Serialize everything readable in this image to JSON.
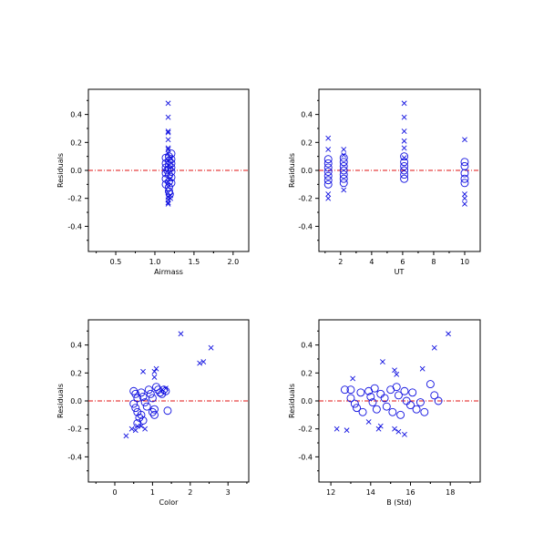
{
  "chart_data": [
    {
      "type": "scatter",
      "xlabel": "Airmass",
      "ylabel": "Residuals",
      "xlim": [
        0.15,
        2.2
      ],
      "ylim": [
        -0.58,
        0.58
      ],
      "xticks": [
        "0.5",
        "1.0",
        "1.5",
        "2.0"
      ],
      "yticks": [
        "-0.4",
        "-0.2",
        "0.0",
        "0.2",
        "0.4"
      ],
      "reference_line": 0,
      "series": [
        {
          "marker": "x",
          "points": [
            [
              1.17,
              0.48
            ],
            [
              1.17,
              0.38
            ],
            [
              1.17,
              0.28
            ],
            [
              1.17,
              0.27
            ],
            [
              1.17,
              0.22
            ],
            [
              1.17,
              0.16
            ],
            [
              1.17,
              0.15
            ],
            [
              1.17,
              0.12
            ],
            [
              1.17,
              -0.08
            ],
            [
              1.17,
              -0.12
            ],
            [
              1.17,
              -0.16
            ],
            [
              1.17,
              -0.19
            ],
            [
              1.17,
              -0.21
            ],
            [
              1.17,
              -0.23
            ],
            [
              1.17,
              -0.24
            ],
            [
              1.2,
              -0.18
            ],
            [
              1.2,
              -0.2
            ],
            [
              1.2,
              0.09
            ],
            [
              1.2,
              -0.06
            ]
          ]
        },
        {
          "marker": "o",
          "points": [
            [
              1.14,
              0.09
            ],
            [
              1.14,
              0.05
            ],
            [
              1.14,
              0.02
            ],
            [
              1.14,
              -0.02
            ],
            [
              1.14,
              -0.06
            ],
            [
              1.14,
              -0.1
            ],
            [
              1.18,
              0.1
            ],
            [
              1.18,
              0.07
            ],
            [
              1.18,
              0.04
            ],
            [
              1.18,
              0.01
            ],
            [
              1.18,
              -0.03
            ],
            [
              1.18,
              -0.08
            ],
            [
              1.18,
              -0.12
            ],
            [
              1.18,
              -0.15
            ],
            [
              1.21,
              0.08
            ],
            [
              1.21,
              0.05
            ],
            [
              1.21,
              0.02
            ],
            [
              1.21,
              -0.01
            ],
            [
              1.21,
              -0.05
            ],
            [
              1.21,
              -0.09
            ],
            [
              1.21,
              0.12
            ],
            [
              1.16,
              0.0
            ],
            [
              1.19,
              -0.17
            ]
          ]
        }
      ]
    },
    {
      "type": "scatter",
      "xlabel": "UT",
      "ylabel": "Residuals",
      "xlim": [
        0.6,
        11.0
      ],
      "ylim": [
        -0.58,
        0.58
      ],
      "xticks": [
        "2",
        "4",
        "6",
        "8",
        "10"
      ],
      "yticks": [
        "-0.4",
        "-0.2",
        "0.0",
        "0.2",
        "0.4"
      ],
      "reference_line": 0,
      "series": [
        {
          "marker": "x",
          "points": [
            [
              1.2,
              0.23
            ],
            [
              1.2,
              0.15
            ],
            [
              1.2,
              -0.17
            ],
            [
              1.2,
              -0.2
            ],
            [
              2.2,
              0.15
            ],
            [
              2.2,
              0.11
            ],
            [
              2.2,
              -0.14
            ],
            [
              6.1,
              0.48
            ],
            [
              6.1,
              0.38
            ],
            [
              6.1,
              0.28
            ],
            [
              6.1,
              0.21
            ],
            [
              6.1,
              0.16
            ],
            [
              6.1,
              0.09
            ],
            [
              10.0,
              0.22
            ],
            [
              10.0,
              -0.17
            ],
            [
              10.0,
              -0.2
            ],
            [
              10.0,
              -0.24
            ]
          ]
        },
        {
          "marker": "o",
          "points": [
            [
              1.2,
              0.08
            ],
            [
              1.2,
              0.05
            ],
            [
              1.2,
              0.02
            ],
            [
              1.2,
              -0.01
            ],
            [
              1.2,
              -0.04
            ],
            [
              1.2,
              -0.07
            ],
            [
              1.2,
              -0.1
            ],
            [
              2.2,
              0.09
            ],
            [
              2.2,
              0.06
            ],
            [
              2.2,
              0.03
            ],
            [
              2.2,
              0.0
            ],
            [
              2.2,
              -0.03
            ],
            [
              2.2,
              -0.06
            ],
            [
              2.2,
              -0.09
            ],
            [
              6.1,
              0.1
            ],
            [
              6.1,
              0.06
            ],
            [
              6.1,
              0.03
            ],
            [
              6.1,
              0.0
            ],
            [
              6.1,
              -0.03
            ],
            [
              6.1,
              -0.06
            ],
            [
              10.0,
              0.06
            ],
            [
              10.0,
              0.03
            ],
            [
              10.0,
              -0.02
            ],
            [
              10.0,
              -0.06
            ],
            [
              10.0,
              -0.09
            ]
          ]
        }
      ]
    },
    {
      "type": "scatter",
      "xlabel": "Color",
      "ylabel": "Residuals",
      "xlim": [
        -0.7,
        3.55
      ],
      "ylim": [
        -0.58,
        0.58
      ],
      "xticks": [
        "0",
        "1",
        "2",
        "3"
      ],
      "yticks": [
        "-0.4",
        "-0.2",
        "0.0",
        "0.2",
        "0.4"
      ],
      "reference_line": 0,
      "series": [
        {
          "marker": "x",
          "points": [
            [
              1.75,
              0.48
            ],
            [
              2.55,
              0.38
            ],
            [
              2.25,
              0.27
            ],
            [
              2.35,
              0.28
            ],
            [
              0.75,
              0.21
            ],
            [
              1.05,
              0.21
            ],
            [
              1.05,
              0.17
            ],
            [
              1.1,
              0.23
            ],
            [
              1.35,
              0.09
            ],
            [
              0.3,
              -0.25
            ],
            [
              0.45,
              -0.2
            ],
            [
              0.55,
              -0.21
            ],
            [
              0.6,
              -0.18
            ],
            [
              0.7,
              -0.18
            ],
            [
              0.8,
              -0.2
            ]
          ]
        },
        {
          "marker": "o",
          "points": [
            [
              0.5,
              0.07
            ],
            [
              0.55,
              0.05
            ],
            [
              0.6,
              0.02
            ],
            [
              0.5,
              -0.02
            ],
            [
              0.55,
              -0.05
            ],
            [
              0.6,
              -0.08
            ],
            [
              0.65,
              -0.12
            ],
            [
              0.7,
              0.06
            ],
            [
              0.75,
              0.03
            ],
            [
              0.8,
              -0.01
            ],
            [
              0.85,
              -0.04
            ],
            [
              0.9,
              0.08
            ],
            [
              0.95,
              0.05
            ],
            [
              1.0,
              0.02
            ],
            [
              1.05,
              -0.06
            ],
            [
              1.1,
              0.1
            ],
            [
              1.15,
              0.08
            ],
            [
              1.2,
              0.06
            ],
            [
              1.25,
              0.05
            ],
            [
              1.3,
              0.08
            ],
            [
              1.35,
              0.07
            ],
            [
              1.4,
              -0.07
            ],
            [
              0.6,
              -0.16
            ],
            [
              0.7,
              -0.1
            ],
            [
              0.75,
              -0.14
            ],
            [
              1.0,
              -0.08
            ],
            [
              1.05,
              -0.1
            ]
          ]
        }
      ]
    },
    {
      "type": "scatter",
      "xlabel": "B (Std)",
      "ylabel": "Residuals",
      "xlim": [
        11.4,
        19.5
      ],
      "ylim": [
        -0.58,
        0.58
      ],
      "xticks": [
        "12",
        "14",
        "16",
        "18"
      ],
      "yticks": [
        "-0.4",
        "-0.2",
        "0.0",
        "0.2",
        "0.4"
      ],
      "reference_line": 0,
      "series": [
        {
          "marker": "x",
          "points": [
            [
              17.9,
              0.48
            ],
            [
              17.2,
              0.38
            ],
            [
              16.6,
              0.23
            ],
            [
              15.2,
              0.22
            ],
            [
              15.3,
              0.19
            ],
            [
              14.6,
              0.28
            ],
            [
              13.1,
              0.16
            ],
            [
              12.3,
              -0.2
            ],
            [
              12.8,
              -0.21
            ],
            [
              13.9,
              -0.15
            ],
            [
              14.5,
              -0.18
            ],
            [
              14.4,
              -0.2
            ],
            [
              15.2,
              -0.2
            ],
            [
              15.4,
              -0.22
            ],
            [
              15.7,
              -0.24
            ]
          ]
        },
        {
          "marker": "o",
          "points": [
            [
              12.7,
              0.08
            ],
            [
              13.0,
              0.08
            ],
            [
              13.0,
              0.02
            ],
            [
              13.2,
              -0.02
            ],
            [
              13.3,
              -0.05
            ],
            [
              13.5,
              0.06
            ],
            [
              13.6,
              -0.08
            ],
            [
              13.9,
              0.07
            ],
            [
              14.0,
              0.03
            ],
            [
              14.1,
              -0.01
            ],
            [
              14.2,
              0.09
            ],
            [
              14.3,
              -0.06
            ],
            [
              14.5,
              0.05
            ],
            [
              14.7,
              0.02
            ],
            [
              14.8,
              -0.04
            ],
            [
              15.0,
              0.08
            ],
            [
              15.1,
              -0.08
            ],
            [
              15.3,
              0.1
            ],
            [
              15.4,
              0.04
            ],
            [
              15.5,
              -0.1
            ],
            [
              15.7,
              0.07
            ],
            [
              15.8,
              0.0
            ],
            [
              16.0,
              -0.03
            ],
            [
              16.1,
              0.06
            ],
            [
              16.3,
              -0.06
            ],
            [
              16.5,
              -0.01
            ],
            [
              16.7,
              -0.08
            ],
            [
              17.0,
              0.12
            ],
            [
              17.2,
              0.04
            ],
            [
              17.4,
              0.0
            ]
          ]
        }
      ]
    }
  ]
}
